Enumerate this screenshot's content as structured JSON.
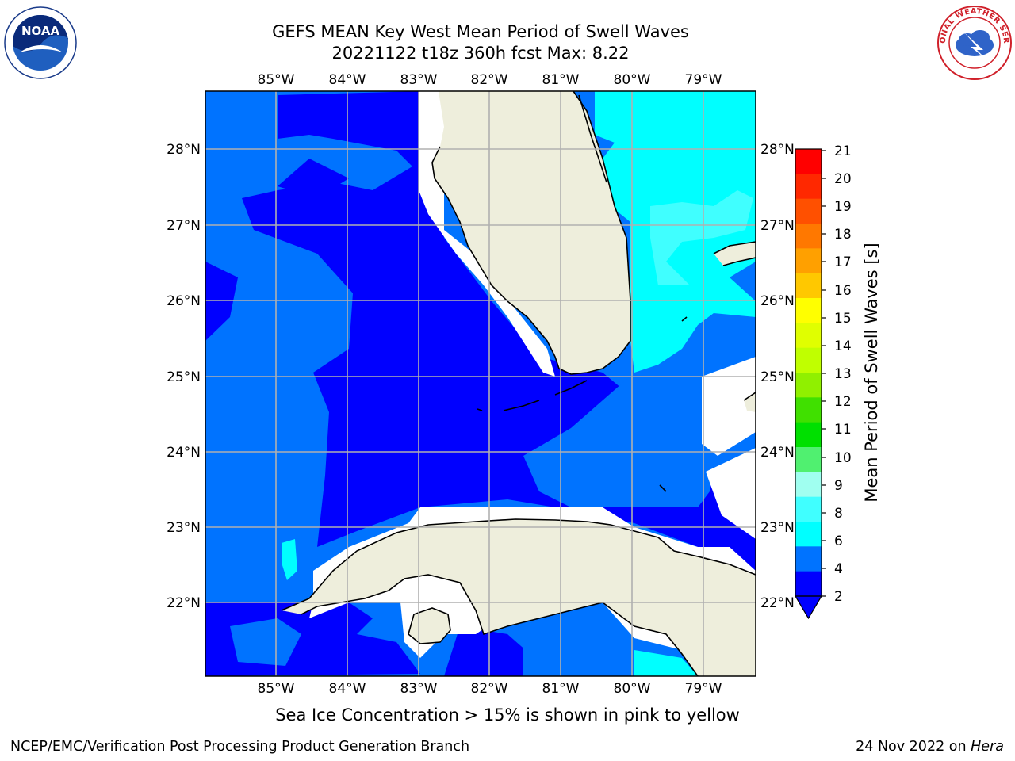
{
  "header": {
    "title_line1": "GEFS MEAN Key West Mean Period of Swell Waves",
    "title_line2": "20221122 t18z 360h fcst   Max: 8.22"
  },
  "logos": {
    "left": {
      "name": "noaa-logo",
      "text": "NOAA"
    },
    "right": {
      "name": "nws-logo",
      "text": "NATIONAL WEATHER SERVICE"
    }
  },
  "map": {
    "lon_ticks": [
      "85°W",
      "84°W",
      "83°W",
      "82°W",
      "81°W",
      "80°W",
      "79°W"
    ],
    "lat_ticks": [
      "28°N",
      "27°N",
      "26°N",
      "25°N",
      "24°N",
      "23°N",
      "22°N"
    ],
    "colors": {
      "land": "#eeeedc",
      "no_data": "#ffffff",
      "grid": "#b0b0b0",
      "band_2_4": "#0000ff",
      "band_4_6_dark": "#0a0af0",
      "band_2_4_light": "#0073ff",
      "band_6_8": "#00ffff",
      "band_8_9": "#40ffff"
    }
  },
  "colorbar": {
    "label": "Mean Period of Swell Waves [s]",
    "ticks": [
      "21",
      "20",
      "19",
      "18",
      "17",
      "16",
      "15",
      "14",
      "13",
      "12",
      "11",
      "10",
      "9",
      "8",
      "6",
      "4",
      "2"
    ],
    "colors": [
      "#ff0000",
      "#ff2800",
      "#ff5000",
      "#ff7800",
      "#ffa000",
      "#ffc800",
      "#ffff00",
      "#e0ff00",
      "#c0ff00",
      "#90f000",
      "#40e000",
      "#00e000",
      "#50f070",
      "#a0fff0",
      "#40ffff",
      "#00ffff",
      "#0073ff",
      "#0000ff"
    ]
  },
  "caption": "Sea Ice Concentration > 15% is shown in pink to yellow",
  "footer": {
    "left": "NCEP/EMC/Verification Post Processing Product Generation Branch",
    "right_prefix": "24 Nov 2022 on ",
    "right_host": "Hera"
  }
}
